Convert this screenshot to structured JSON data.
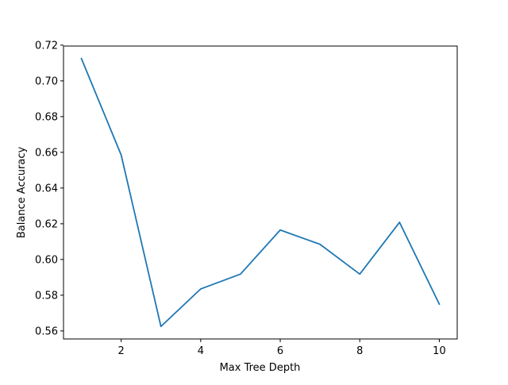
{
  "chart_data": {
    "type": "line",
    "title": "",
    "xlabel": "Max Tree Depth",
    "ylabel": "Balance Accuracy",
    "xlim": [
      0.55,
      10.45
    ],
    "ylim": [
      0.5555,
      0.7195
    ],
    "xticks": [
      2,
      4,
      6,
      8,
      10
    ],
    "xtick_labels": [
      "2",
      "4",
      "6",
      "8",
      "10"
    ],
    "yticks": [
      0.56,
      0.58,
      0.6,
      0.62,
      0.64,
      0.66,
      0.68,
      0.7,
      0.72
    ],
    "ytick_labels": [
      "0.56",
      "0.58",
      "0.60",
      "0.62",
      "0.64",
      "0.66",
      "0.68",
      "0.70",
      "0.72"
    ],
    "grid": false,
    "series": [
      {
        "color": "#1f77b4",
        "x": [
          1,
          2,
          3,
          4,
          5,
          6,
          7,
          8,
          9,
          10
        ],
        "values": [
          0.7125,
          0.6585,
          0.5625,
          0.5835,
          0.5918,
          0.6165,
          0.6085,
          0.5918,
          0.6208,
          0.575
        ]
      }
    ]
  }
}
